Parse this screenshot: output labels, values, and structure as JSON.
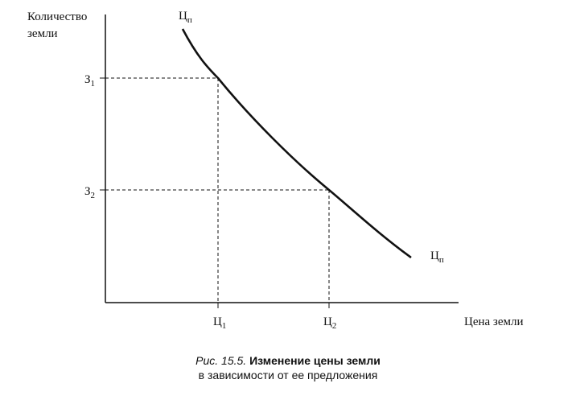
{
  "axes": {
    "y_label_line1": "Количество",
    "y_label_line2": "земли",
    "x_label": "Цена земли"
  },
  "curve": {
    "label_main": "Ц",
    "label_sub": "п"
  },
  "ticks": {
    "y": [
      {
        "main": "З",
        "sub": "1"
      },
      {
        "main": "З",
        "sub": "2"
      }
    ],
    "x": [
      {
        "main": "Ц",
        "sub": "1"
      },
      {
        "main": "Ц",
        "sub": "2"
      }
    ]
  },
  "caption": {
    "prefix": "Рис. 15.5.",
    "line1": "Изменение цены земли",
    "line2": "в зависимости от ее предложения"
  }
}
